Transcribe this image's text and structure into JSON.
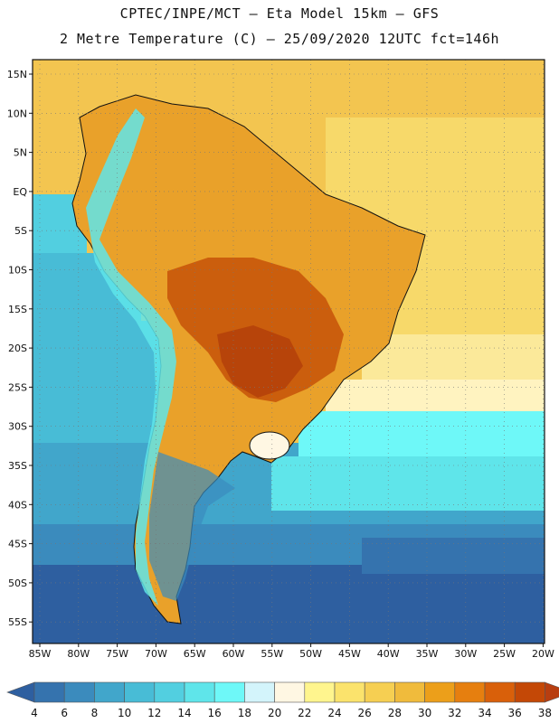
{
  "header": {
    "title_line1": "CPTEC/INPE/MCT –  Eta Model 15km – GFS",
    "title_line2": "2 Metre Temperature (C) – 25/09/2020 12UTC fct=146h"
  },
  "map": {
    "lat_labels": [
      "15N",
      "10N",
      "5N",
      "EQ",
      "5S",
      "10S",
      "15S",
      "20S",
      "25S",
      "30S",
      "35S",
      "40S",
      "45S",
      "50S",
      "55S"
    ],
    "lon_labels": [
      "85W",
      "80W",
      "75W",
      "70W",
      "65W",
      "60W",
      "55W",
      "50W",
      "45W",
      "40W",
      "35W",
      "30W",
      "25W",
      "20W"
    ]
  },
  "colorbar": {
    "labels": [
      "4",
      "6",
      "8",
      "10",
      "12",
      "14",
      "16",
      "18",
      "20",
      "22",
      "24",
      "26",
      "28",
      "30",
      "32",
      "34",
      "36",
      "38"
    ],
    "colors": [
      "#2e5fa0",
      "#3573ae",
      "#3b8bbd",
      "#41a6cb",
      "#48bcd6",
      "#52cfe0",
      "#5fe5ea",
      "#6ef8f8",
      "#d3f4fb",
      "#fff7e3",
      "#fff58e",
      "#fbe36c",
      "#f6cf52",
      "#f0bb3c",
      "#ec9f1a",
      "#e67f0f",
      "#d9600a",
      "#c44806",
      "#b83e10"
    ]
  }
}
